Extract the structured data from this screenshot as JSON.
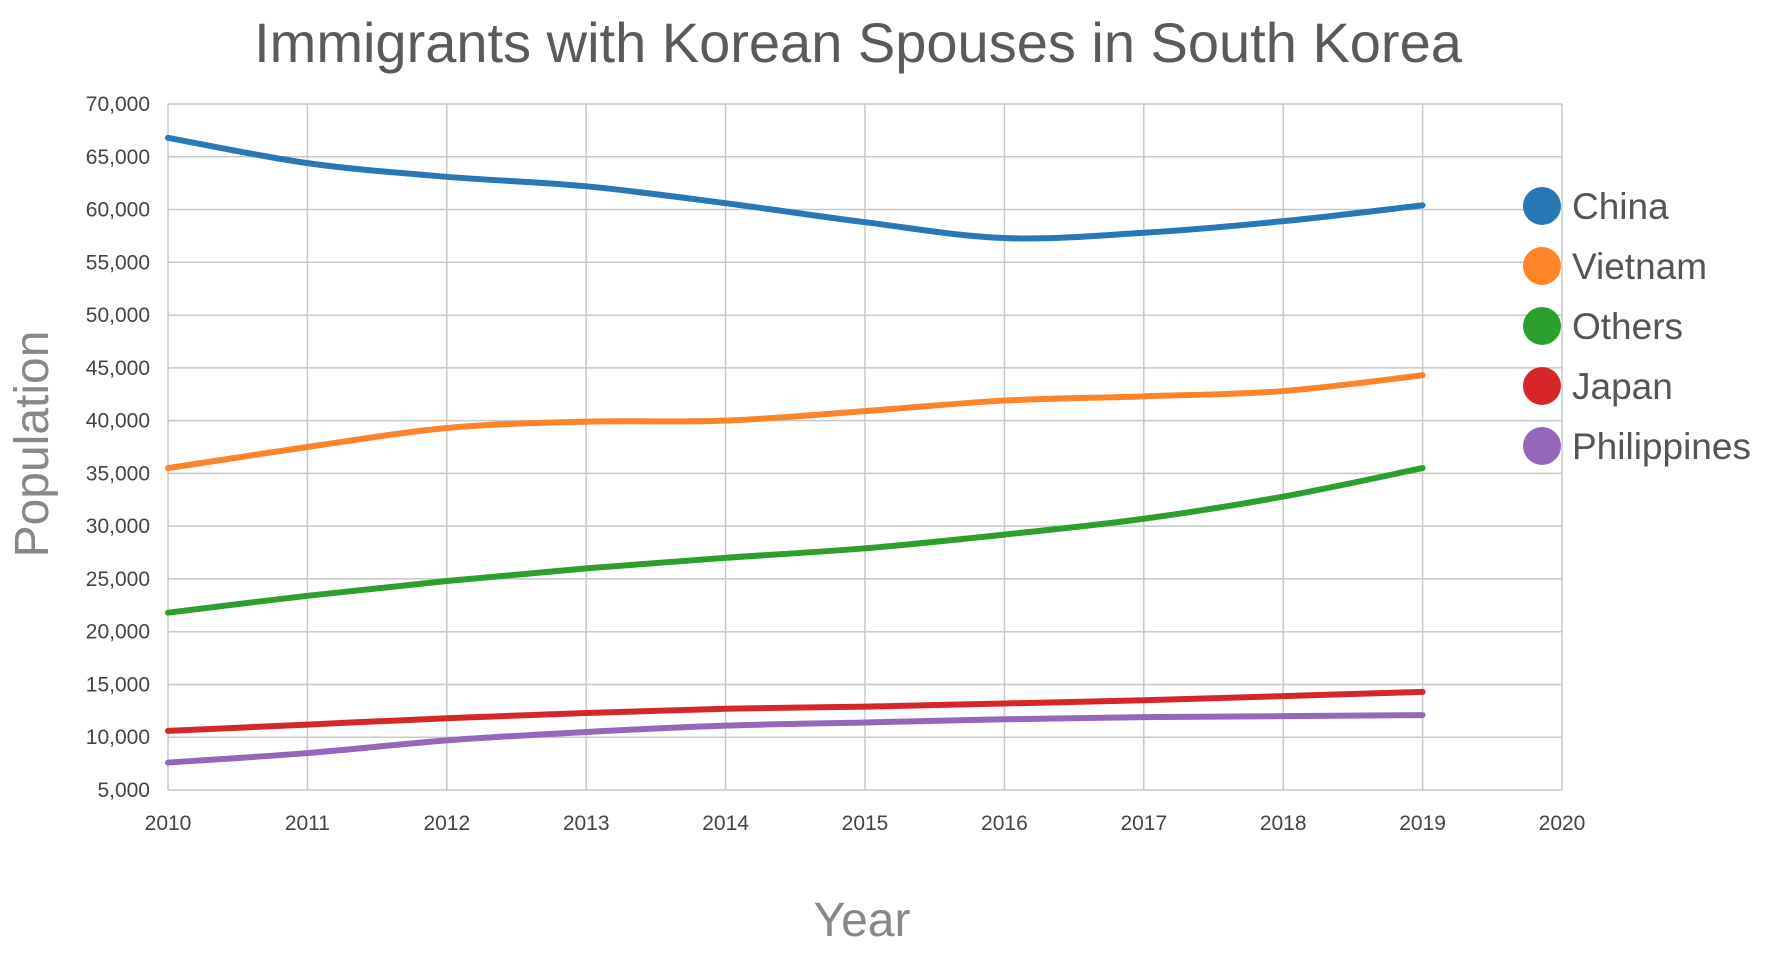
{
  "chart_data": {
    "type": "line",
    "title": "Immigrants with Korean Spouses in South Korea",
    "xlabel": "Year",
    "ylabel": "Population",
    "x": [
      2010,
      2011,
      2012,
      2013,
      2014,
      2015,
      2016,
      2017,
      2018,
      2019
    ],
    "xlim": [
      2010,
      2020
    ],
    "ylim": [
      5000,
      70000
    ],
    "x_ticks": [
      "2010",
      "2011",
      "2012",
      "2013",
      "2014",
      "2015",
      "2016",
      "2017",
      "2018",
      "2019",
      "2020"
    ],
    "y_ticks": [
      "5,000",
      "10,000",
      "15,000",
      "20,000",
      "25,000",
      "30,000",
      "35,000",
      "40,000",
      "45,000",
      "50,000",
      "55,000",
      "60,000",
      "65,000",
      "70,000"
    ],
    "grid": true,
    "legend_position": "right",
    "series": [
      {
        "name": "China",
        "color": "#2878b5",
        "values": [
          66800,
          64400,
          63100,
          62200,
          60600,
          58800,
          57300,
          57800,
          58900,
          60400
        ]
      },
      {
        "name": "Vietnam",
        "color": "#ff8427",
        "values": [
          35500,
          37500,
          39300,
          39900,
          40000,
          40900,
          41900,
          42300,
          42800,
          44300
        ]
      },
      {
        "name": "Others",
        "color": "#2ca02c",
        "values": [
          21800,
          23400,
          24800,
          26000,
          27000,
          27900,
          29200,
          30700,
          32800,
          35500
        ]
      },
      {
        "name": "Japan",
        "color": "#d62728",
        "values": [
          10600,
          11200,
          11800,
          12300,
          12700,
          12900,
          13200,
          13500,
          13900,
          14300
        ]
      },
      {
        "name": "Philippines",
        "color": "#9467bd",
        "values": [
          7600,
          8500,
          9700,
          10500,
          11100,
          11400,
          11700,
          11900,
          12000,
          12100
        ]
      }
    ]
  }
}
